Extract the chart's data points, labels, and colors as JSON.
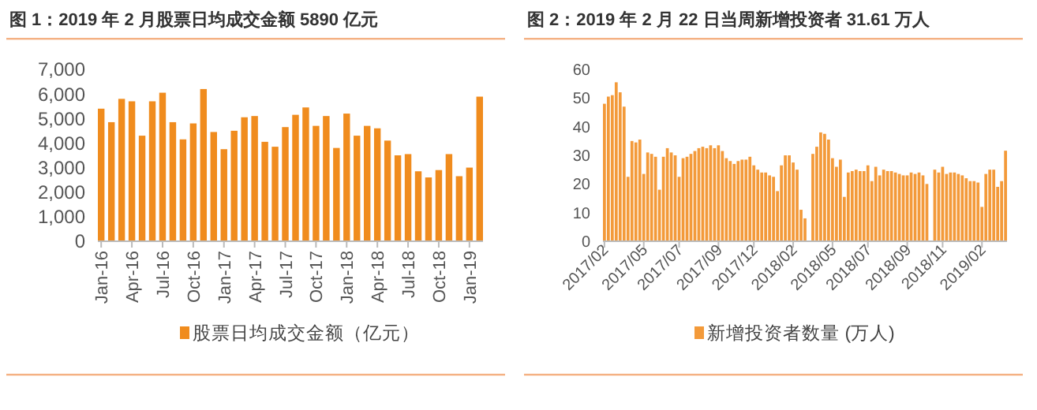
{
  "chart_data": [
    {
      "type": "bar",
      "title": "图 1：2019 年 2 月股票日均成交金额 5890 亿元",
      "categories": [
        "Jan-16",
        null,
        null,
        "Apr-16",
        null,
        null,
        "Jul-16",
        null,
        null,
        "Oct-16",
        null,
        null,
        "Jan-17",
        null,
        null,
        "Apr-17",
        null,
        null,
        "Jul-17",
        null,
        null,
        "Oct-17",
        null,
        null,
        "Jan-18",
        null,
        null,
        "Apr-18",
        null,
        null,
        "Jul-18",
        null,
        null,
        "Oct-18",
        null,
        null,
        "Jan-19",
        null
      ],
      "series": [
        {
          "name": "股票日均成交金额（亿元）",
          "color": "#f08c1e",
          "values": [
            5400,
            4850,
            5800,
            5700,
            4300,
            5700,
            6050,
            4850,
            4150,
            4800,
            6200,
            4450,
            3750,
            4500,
            5050,
            5100,
            4050,
            3850,
            4650,
            5150,
            5450,
            4700,
            5100,
            3800,
            5200,
            4300,
            4700,
            4600,
            4100,
            3500,
            3550,
            2850,
            2600,
            2900,
            3550,
            2650,
            3000,
            5890
          ]
        }
      ],
      "ylim": [
        0,
        7000
      ],
      "yticks": [
        0,
        {
          "value": 1000,
          "label": "1,000"
        },
        {
          "value": 2000,
          "label": "2,000"
        },
        {
          "value": 3000,
          "label": "3,000"
        },
        {
          "value": 4000,
          "label": "4,000"
        },
        {
          "value": 5000,
          "label": "5,000"
        },
        {
          "value": 6000,
          "label": "6,000"
        },
        {
          "value": 7000,
          "label": "7,000"
        }
      ],
      "grid": false,
      "legend": "bottom"
    },
    {
      "type": "bar",
      "title": "图 2：2019 年 2 月 22 日当周新增投资者 31.61 万人",
      "categories": [
        "2017/02",
        null,
        null,
        null,
        null,
        null,
        null,
        null,
        null,
        null,
        "2017/05",
        null,
        null,
        null,
        null,
        null,
        null,
        null,
        null,
        "2017/07",
        null,
        null,
        null,
        null,
        null,
        null,
        null,
        null,
        null,
        "2017/09",
        null,
        null,
        null,
        null,
        null,
        null,
        null,
        null,
        "2017/12",
        null,
        null,
        null,
        null,
        null,
        null,
        null,
        null,
        null,
        "2018/02",
        null,
        null,
        null,
        null,
        null,
        null,
        null,
        null,
        null,
        "2018/05",
        null,
        null,
        null,
        null,
        null,
        null,
        null,
        null,
        "2018/07",
        null,
        null,
        null,
        null,
        null,
        null,
        null,
        null,
        null,
        "2018/09",
        null,
        null,
        null,
        null,
        null,
        null,
        null,
        null,
        "2018/11",
        null,
        null,
        null,
        null,
        null,
        null,
        null,
        null,
        null,
        "2019/02",
        null,
        null,
        null,
        null,
        null,
        null
      ],
      "series": [
        {
          "name": "新增投资者数量 (万人)",
          "color": "#f39a3a",
          "values": [
            48,
            50.5,
            51,
            55.5,
            52,
            47,
            22.5,
            35,
            34.5,
            35.5,
            23.5,
            31,
            30.5,
            29.5,
            18,
            29.5,
            32.5,
            31,
            30,
            22.5,
            29,
            29.5,
            30.5,
            31.5,
            32.5,
            33,
            32.5,
            33.5,
            32.5,
            33.5,
            31.5,
            29,
            28,
            27,
            28,
            28.5,
            28.5,
            29.5,
            26.5,
            25,
            24,
            24,
            23,
            22.5,
            17.5,
            26.5,
            30,
            30,
            27.5,
            25,
            11,
            8,
            null,
            30.5,
            33,
            38,
            37.5,
            35.5,
            29,
            26,
            28.5,
            15.5,
            24,
            24.5,
            25,
            24.5,
            24.5,
            26.5,
            21,
            26,
            23,
            25,
            24.5,
            24.5,
            24,
            23.5,
            23,
            23,
            24,
            23.5,
            24,
            23,
            20,
            null,
            25,
            24,
            26,
            23.5,
            24,
            24,
            23.5,
            23,
            22,
            21,
            21,
            20.5,
            12,
            23.5,
            25,
            25,
            19,
            21,
            31.61
          ]
        }
      ],
      "ylim": [
        0,
        60
      ],
      "yticks": [
        0,
        10,
        20,
        30,
        40,
        50,
        60
      ],
      "grid": false,
      "legend": "bottom"
    }
  ]
}
